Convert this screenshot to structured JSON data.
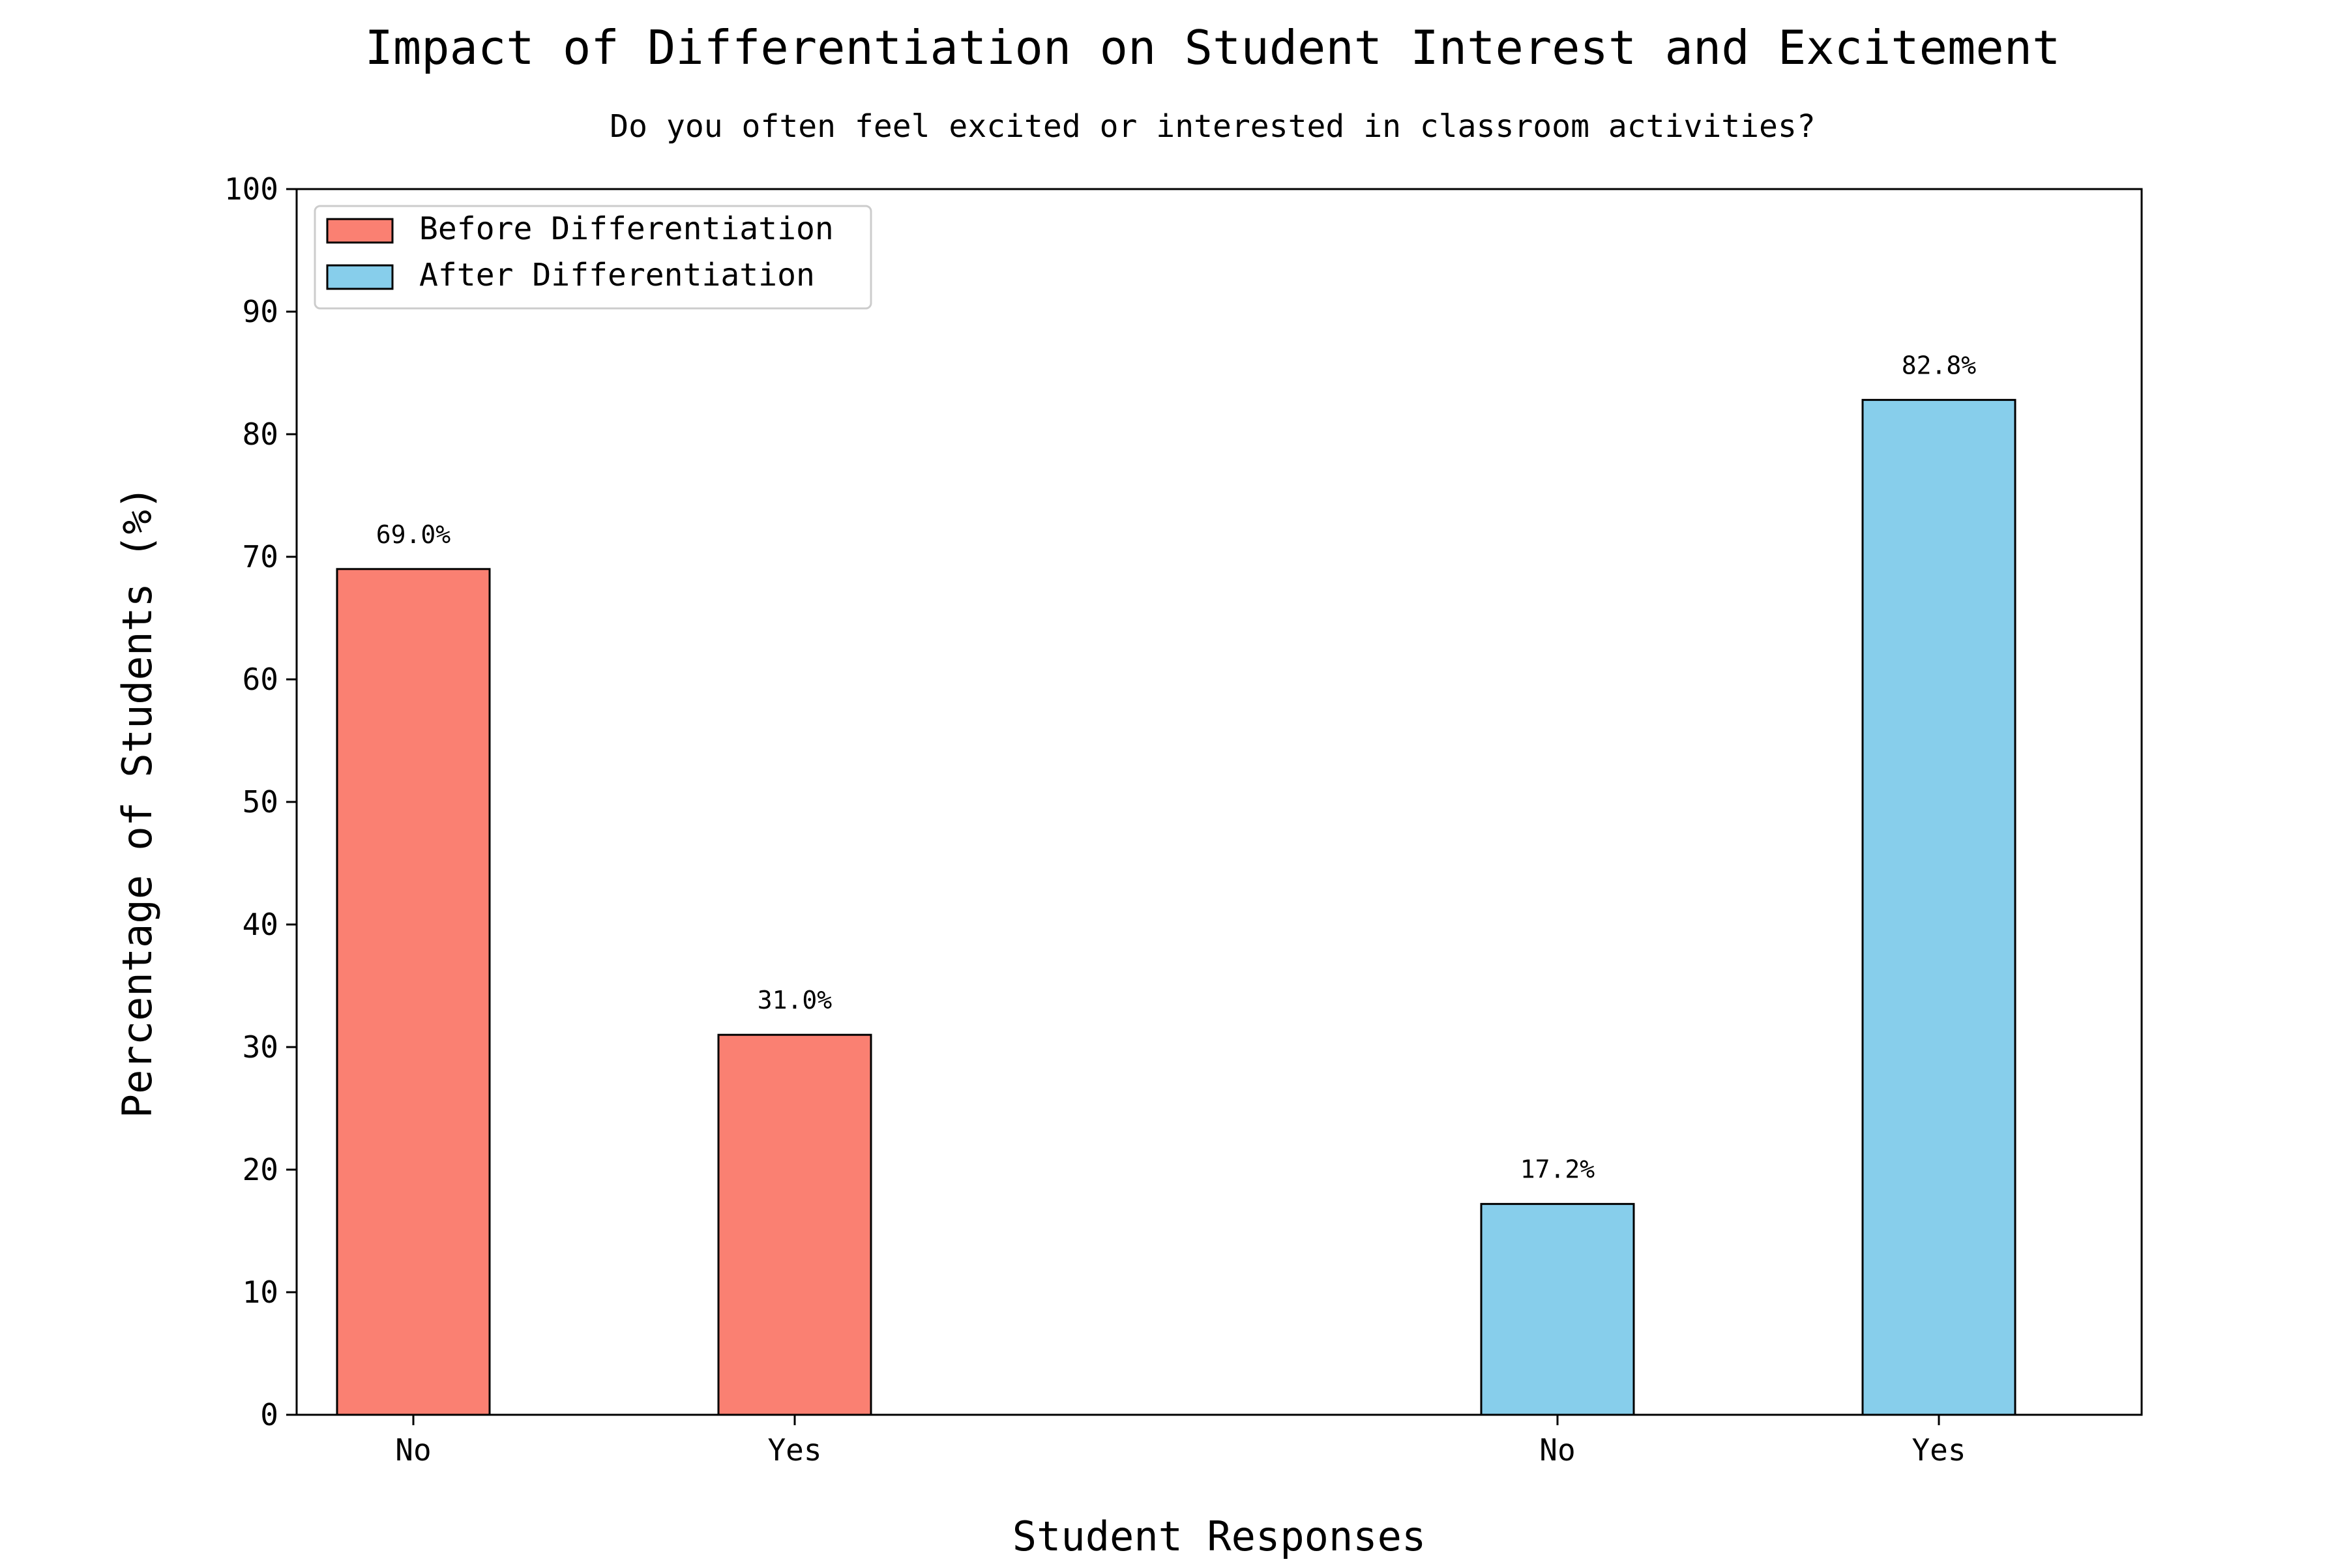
{
  "chart_data": {
    "type": "bar",
    "title": "Impact of Differentiation on Student Interest and Excitement",
    "subtitle": "Do you often feel excited or interested in classroom activities?",
    "xlabel": "Student Responses",
    "ylabel": "Percentage of Students (%)",
    "ylim": [
      0,
      100
    ],
    "yticks": [
      0,
      10,
      20,
      30,
      40,
      50,
      60,
      70,
      80,
      90,
      100
    ],
    "grid": false,
    "legend_position": "top-left",
    "series": [
      {
        "name": "Before Differentiation",
        "color": "#fa8072",
        "categories": [
          "No",
          "Yes"
        ],
        "values": [
          69.0,
          31.0
        ],
        "labels": [
          "69.0%",
          "31.0%"
        ]
      },
      {
        "name": "After Differentiation",
        "color": "#87ceeb",
        "categories": [
          "No",
          "Yes"
        ],
        "values": [
          17.2,
          82.8
        ],
        "labels": [
          "17.2%",
          "82.8%"
        ]
      }
    ]
  }
}
